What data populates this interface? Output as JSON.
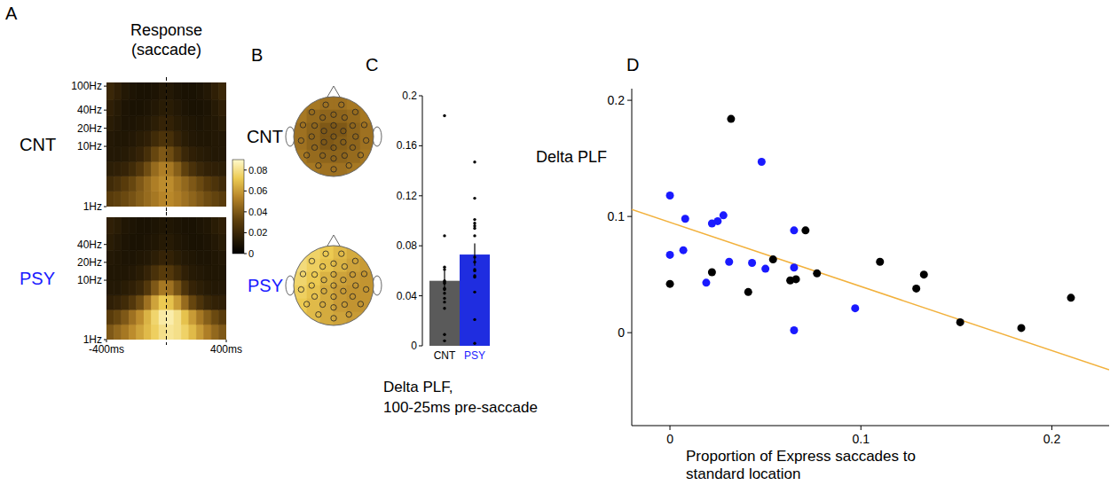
{
  "chart_data": [
    {
      "type": "heatmap",
      "panel": "A",
      "title": "Response (saccade)",
      "label": "CNT",
      "color": "#000000",
      "x_bins": [
        -400,
        -350,
        -300,
        -250,
        -200,
        -150,
        -100,
        -50,
        0,
        50,
        100,
        150,
        200,
        250,
        300,
        350,
        400
      ],
      "y_bins": [
        1,
        1.8,
        3.2,
        5.6,
        10,
        18,
        32,
        60,
        115
      ],
      "values": [
        [
          0.03,
          0.032,
          0.035,
          0.038,
          0.042,
          0.046,
          0.05,
          0.054,
          0.055,
          0.052,
          0.048,
          0.044,
          0.04,
          0.036,
          0.033,
          0.03
        ],
        [
          0.022,
          0.025,
          0.03,
          0.034,
          0.04,
          0.046,
          0.052,
          0.056,
          0.056,
          0.05,
          0.045,
          0.04,
          0.035,
          0.03,
          0.026,
          0.022
        ],
        [
          0.015,
          0.016,
          0.018,
          0.022,
          0.028,
          0.036,
          0.046,
          0.052,
          0.05,
          0.042,
          0.032,
          0.025,
          0.02,
          0.017,
          0.016,
          0.015
        ],
        [
          0.012,
          0.012,
          0.013,
          0.015,
          0.018,
          0.024,
          0.034,
          0.04,
          0.036,
          0.028,
          0.02,
          0.016,
          0.014,
          0.013,
          0.012,
          0.012
        ],
        [
          0.012,
          0.011,
          0.011,
          0.012,
          0.014,
          0.016,
          0.022,
          0.026,
          0.024,
          0.018,
          0.014,
          0.012,
          0.011,
          0.011,
          0.012,
          0.012
        ],
        [
          0.014,
          0.012,
          0.01,
          0.01,
          0.011,
          0.012,
          0.015,
          0.018,
          0.017,
          0.014,
          0.012,
          0.011,
          0.01,
          0.011,
          0.012,
          0.014
        ],
        [
          0.016,
          0.013,
          0.01,
          0.009,
          0.009,
          0.01,
          0.012,
          0.014,
          0.014,
          0.012,
          0.01,
          0.009,
          0.009,
          0.01,
          0.013,
          0.016
        ],
        [
          0.02,
          0.016,
          0.012,
          0.01,
          0.009,
          0.009,
          0.01,
          0.012,
          0.012,
          0.01,
          0.009,
          0.009,
          0.01,
          0.012,
          0.016,
          0.02
        ]
      ],
      "xlim": [
        -400,
        400
      ],
      "ylim": [
        1,
        115
      ],
      "log": "y",
      "vline": 0,
      "line_style": "dashed",
      "yticks": [
        {
          "value": 100,
          "label": "100Hz"
        },
        {
          "value": 40,
          "label": "40Hz"
        },
        {
          "value": 20,
          "label": "20Hz"
        },
        {
          "value": 10,
          "label": "10Hz"
        },
        {
          "value": 1,
          "label": "1Hz"
        }
      ],
      "tick_labels": "y",
      "colorbar": {
        "range": [
          0,
          0.09
        ],
        "ticks": [
          0,
          0.02,
          0.04,
          0.06,
          0.08
        ]
      }
    },
    {
      "type": "heatmap",
      "label": "PSY",
      "color": "#1a1aff",
      "x_bins": [
        -400,
        -350,
        -300,
        -250,
        -200,
        -150,
        -100,
        -50,
        0,
        50,
        100,
        150,
        200,
        250,
        300,
        350,
        400
      ],
      "y_bins": [
        1,
        1.8,
        3.2,
        5.6,
        10,
        18,
        32,
        60,
        115
      ],
      "values": [
        [
          0.04,
          0.045,
          0.05,
          0.056,
          0.062,
          0.068,
          0.074,
          0.08,
          0.082,
          0.08,
          0.075,
          0.068,
          0.06,
          0.052,
          0.045,
          0.04
        ],
        [
          0.03,
          0.034,
          0.04,
          0.048,
          0.056,
          0.066,
          0.076,
          0.084,
          0.085,
          0.08,
          0.07,
          0.06,
          0.05,
          0.042,
          0.035,
          0.03
        ],
        [
          0.016,
          0.018,
          0.022,
          0.028,
          0.036,
          0.048,
          0.062,
          0.072,
          0.07,
          0.06,
          0.046,
          0.034,
          0.026,
          0.02,
          0.017,
          0.016
        ],
        [
          0.012,
          0.012,
          0.014,
          0.016,
          0.02,
          0.028,
          0.04,
          0.05,
          0.048,
          0.038,
          0.026,
          0.018,
          0.015,
          0.013,
          0.012,
          0.012
        ],
        [
          0.011,
          0.011,
          0.011,
          0.012,
          0.014,
          0.018,
          0.025,
          0.03,
          0.028,
          0.022,
          0.016,
          0.013,
          0.012,
          0.011,
          0.011,
          0.011
        ],
        [
          0.012,
          0.011,
          0.01,
          0.01,
          0.011,
          0.012,
          0.015,
          0.018,
          0.017,
          0.014,
          0.012,
          0.011,
          0.01,
          0.01,
          0.011,
          0.012
        ],
        [
          0.014,
          0.012,
          0.01,
          0.009,
          0.009,
          0.01,
          0.011,
          0.013,
          0.013,
          0.011,
          0.01,
          0.009,
          0.009,
          0.01,
          0.012,
          0.014
        ],
        [
          0.016,
          0.014,
          0.011,
          0.01,
          0.009,
          0.009,
          0.01,
          0.011,
          0.011,
          0.01,
          0.009,
          0.009,
          0.01,
          0.011,
          0.014,
          0.016
        ]
      ],
      "xlim": [
        -400,
        400
      ],
      "ylim": [
        1,
        115
      ],
      "log": "y",
      "vline": 0,
      "line_style": "dashed",
      "xticks": [
        {
          "value": -400,
          "label": "-400ms"
        },
        {
          "value": 400,
          "label": "400ms"
        }
      ],
      "yticks": [
        {
          "value": 40,
          "label": "40Hz"
        },
        {
          "value": 20,
          "label": "20Hz"
        },
        {
          "value": 10,
          "label": "10Hz"
        },
        {
          "value": 1,
          "label": "1Hz"
        }
      ],
      "tick_labels": true
    },
    {
      "type": "topomap",
      "panel": "B",
      "label": "CNT",
      "color": "#000000",
      "values": [
        [
          0.05,
          0.05,
          0.048,
          0.048,
          0.05,
          0.05
        ],
        [
          0.05,
          0.046,
          0.044,
          0.044,
          0.046,
          0.05
        ],
        [
          0.048,
          0.044,
          0.04,
          0.04,
          0.044,
          0.048
        ],
        [
          0.048,
          0.044,
          0.04,
          0.042,
          0.044,
          0.048
        ],
        [
          0.05,
          0.046,
          0.044,
          0.044,
          0.046,
          0.05
        ],
        [
          0.05,
          0.05,
          0.048,
          0.048,
          0.05,
          0.05
        ]
      ]
    },
    {
      "type": "topomap",
      "label": "PSY",
      "color": "#1a1aff",
      "values": [
        [
          0.075,
          0.075,
          0.072,
          0.068,
          0.064,
          0.062
        ],
        [
          0.078,
          0.074,
          0.07,
          0.066,
          0.062,
          0.06
        ],
        [
          0.076,
          0.072,
          0.066,
          0.062,
          0.06,
          0.058
        ],
        [
          0.074,
          0.07,
          0.064,
          0.06,
          0.058,
          0.058
        ],
        [
          0.072,
          0.068,
          0.064,
          0.06,
          0.058,
          0.058
        ],
        [
          0.07,
          0.068,
          0.064,
          0.062,
          0.06,
          0.06
        ]
      ]
    },
    {
      "type": "bar",
      "panel": "C",
      "categories": [
        "CNT",
        "PSY"
      ],
      "values": [
        0.052,
        0.073
      ],
      "errors": [
        0.008,
        0.009
      ],
      "colors": [
        "#5a5a5a",
        "#1f2de0"
      ],
      "points": [
        [
          0.042,
          0.052,
          0.184,
          0.035,
          0.063,
          0.045,
          0.046,
          0.088,
          0.051,
          0.061,
          0.038,
          0.05,
          0.009,
          0.004,
          0.03
        ],
        [
          0.118,
          0.067,
          0.071,
          0.098,
          0.043,
          0.094,
          0.096,
          0.101,
          0.061,
          0.06,
          0.147,
          0.055,
          0.088,
          0.056,
          0.002,
          0.021
        ]
      ],
      "ylim": [
        0,
        0.2
      ],
      "yticks": [
        0,
        0.04,
        0.08,
        0.12,
        0.16,
        0.2
      ],
      "caption": [
        "Delta PLF,",
        "100-25ms pre-saccade"
      ]
    },
    {
      "type": "scatter",
      "panel": "D",
      "ylabel": "Delta PLF",
      "xlabel": "Proportion of Express saccades to standard location",
      "xlim": [
        -0.02,
        0.23
      ],
      "ylim": [
        -0.08,
        0.21
      ],
      "xticks": [
        0,
        0.1,
        0.2
      ],
      "yticks": [
        0,
        0.1,
        0.2
      ],
      "series": [
        {
          "color": "#000000",
          "marker": "circle",
          "x": [
            0,
            0.022,
            0.032,
            0.041,
            0.054,
            0.063,
            0.066,
            0.071,
            0.077,
            0.11,
            0.129,
            0.133,
            0.152,
            0.184,
            0.21
          ],
          "values": [
            0.042,
            0.052,
            0.184,
            0.035,
            0.063,
            0.045,
            0.046,
            0.088,
            0.051,
            0.061,
            0.038,
            0.05,
            0.009,
            0.004,
            0.03
          ]
        },
        {
          "color": "#1a1aff",
          "marker": "circle",
          "x": [
            0,
            0,
            0.007,
            0.008,
            0.019,
            0.022,
            0.025,
            0.028,
            0.031,
            0.043,
            0.048,
            0.05,
            0.065,
            0.065,
            0.065,
            0.097
          ],
          "values": [
            0.118,
            0.067,
            0.071,
            0.098,
            0.043,
            0.094,
            0.096,
            0.101,
            0.061,
            0.06,
            0.147,
            0.055,
            0.088,
            0.056,
            0.002,
            0.021
          ]
        },
        {
          "type": "line",
          "color": "#f2b13c",
          "line_style": "solid",
          "x": [
            -0.02,
            0.23
          ],
          "values": [
            0.106,
            -0.032
          ]
        }
      ]
    }
  ]
}
